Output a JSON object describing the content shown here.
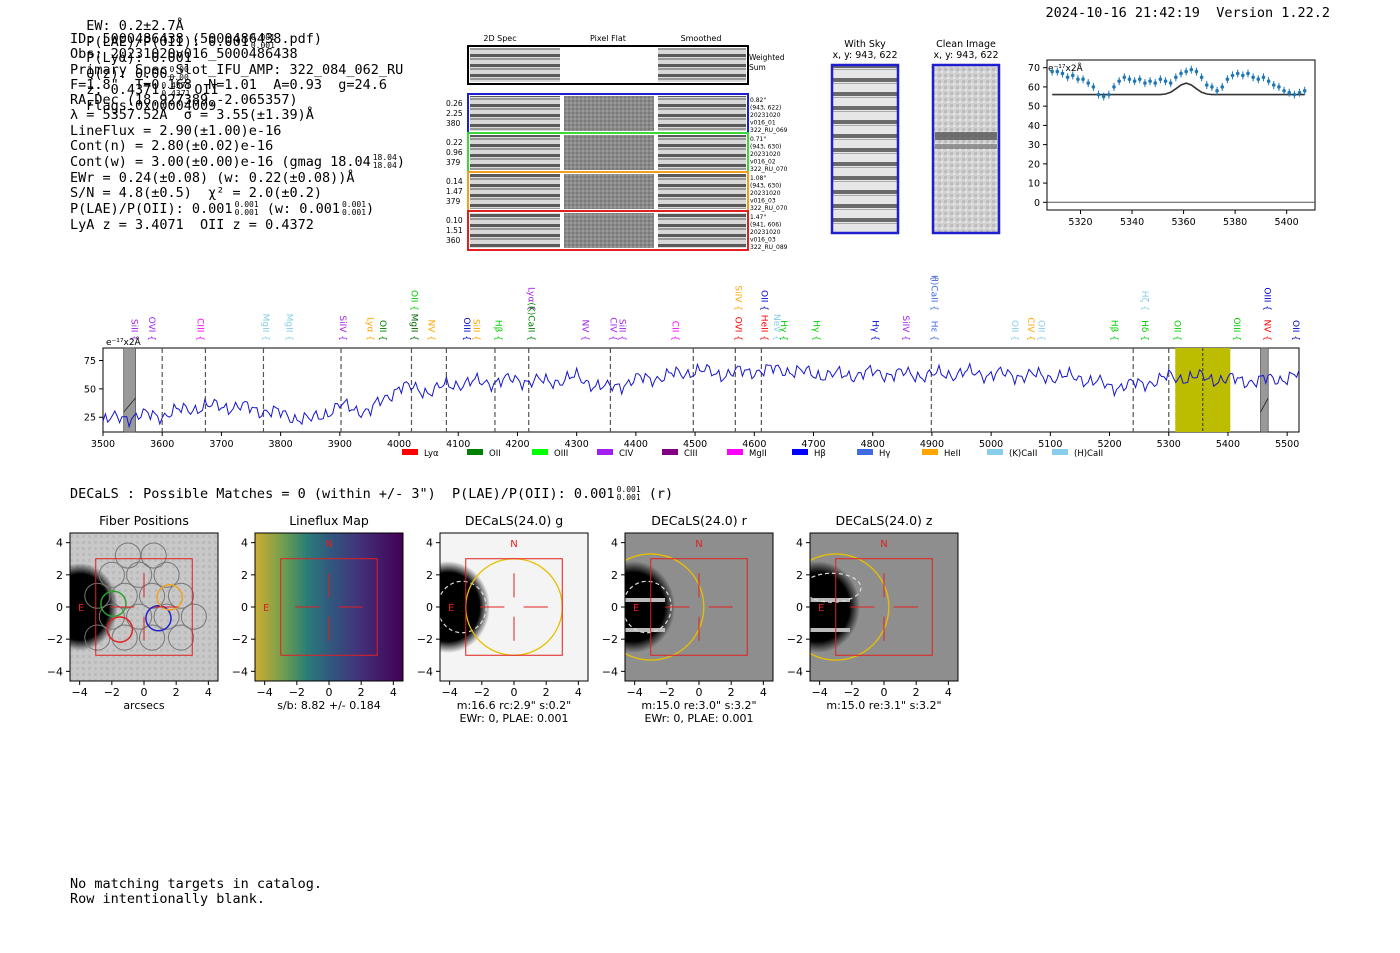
{
  "header": {
    "ew": "EW: 0.2±2.7Å",
    "plae_label": "P(LAE)/P(OII): 0.001",
    "plae_hi": "0.001",
    "plae_lo": "0.001",
    "plya": "P(Lyα): 0.001",
    "qz_label": "Q(z): 0.00",
    "qz_hi": "0.00",
    "qz_lo": "0.00",
    "z_label": "z: 0.4371",
    "z_hi": "0.4371",
    "z_lo": "0.4371",
    "z_line": "OII",
    "flags": "Flags:0x00004009",
    "timestamp": "2024-10-16 21:42:19",
    "version": "Version 1.22.2"
  },
  "info": {
    "id": "ID: 5000486438 (5000486438.pdf)",
    "obs": "Obs: 20231020v016_5000486438",
    "primary": "Primary Spec_Slot_IFU_AMP: 322_084_062_RU",
    "fwhm": "F=1.8\"  T=0.168  N=1.01  A=0.93  g=24.6",
    "radec": "RA,Dec (18.927389,-2.065357)",
    "lambda": "λ = 5357.52Å  σ = 3.55(±1.39)Å",
    "lineflux": "LineFlux = 2.90(±1.00)e-16",
    "contn": "Cont(n) = 2.80(±0.02)e-16",
    "contw": "Cont(w) = 3.00(±0.00)e-16 (gmag 18.04",
    "contw_hi": "18.04",
    "contw_lo": "18.04",
    "ewr": "EWr = 0.24(±0.08) (w: 0.22(±0.08))Å",
    "sn": "S/N = 4.8(±0.5)  χ² = 2.0(±0.2)",
    "plae": "P(LAE)/P(OII): 0.001",
    "plae_hi": "0.001",
    "plae_lo": "0.001",
    "plae_w": "(w: 0.001",
    "plae_w_hi": "0.001",
    "plae_w_lo": "0.001",
    "lya_z": "LyA z = 3.4071  OII z = 0.4372"
  },
  "cutouts": {
    "col_2d": "2D Spec",
    "col_flat": "Pixel Flat",
    "col_smooth": "Smoothed",
    "weighted": "Weighted",
    "sum": "Sum",
    "rows": [
      {
        "color": "#1f1fd0",
        "left": [
          "0.26",
          "2.25",
          "380"
        ],
        "right": [
          "0.82\"",
          "(943, 622)",
          "20231020",
          "v016_01",
          "322_RU_069"
        ]
      },
      {
        "color": "#3ad83a",
        "left": [
          "0.22",
          "0.96",
          "379"
        ],
        "right": [
          "0.71\"",
          "(943, 630)",
          "20231020",
          "v016_02",
          "322_RU_070"
        ]
      },
      {
        "color": "#f0a020",
        "left": [
          "0.14",
          "1.47",
          "379"
        ],
        "right": [
          "1.08\"",
          "(943, 630)",
          "20231020",
          "v016_03",
          "322_RU_070"
        ]
      },
      {
        "color": "#e02020",
        "left": [
          "0.10",
          "1.51",
          "360"
        ],
        "right": [
          "1.47\"",
          "(941, 606)",
          "20231020",
          "v016_03",
          "322_RU_089"
        ]
      }
    ],
    "with_sky": "With Sky",
    "with_sky_xy": "x, y: 943, 622",
    "clean": "Clean Image",
    "clean_xy": "x, y: 943, 622"
  },
  "zoom_chart": {
    "type": "line",
    "unit_label": "e⁻¹⁷x2Å",
    "xlim": [
      5307,
      5411
    ],
    "ylim": [
      -4,
      74
    ],
    "xticks": [
      5320,
      5340,
      5360,
      5380,
      5400
    ],
    "yticks": [
      0,
      10,
      20,
      30,
      40,
      50,
      60,
      70
    ],
    "points_x": [
      5309,
      5311,
      5313,
      5315,
      5317,
      5319,
      5321,
      5323,
      5325,
      5327,
      5329,
      5331,
      5333,
      5335,
      5337,
      5339,
      5341,
      5343,
      5345,
      5347,
      5349,
      5351,
      5353,
      5355,
      5357,
      5359,
      5361,
      5363,
      5365,
      5367,
      5369,
      5371,
      5373,
      5375,
      5377,
      5379,
      5381,
      5383,
      5385,
      5387,
      5389,
      5391,
      5393,
      5395,
      5397,
      5399,
      5401,
      5403,
      5405,
      5407
    ],
    "points_y": [
      68,
      68,
      67,
      65,
      66,
      64,
      64,
      62,
      60,
      56,
      55,
      56,
      60,
      63,
      65,
      64,
      63,
      64,
      62,
      63,
      62,
      64,
      63,
      62,
      65,
      67,
      68,
      69,
      68,
      65,
      61,
      60,
      58,
      60,
      64,
      66,
      67,
      66,
      67,
      65,
      64,
      65,
      63,
      61,
      60,
      58,
      57,
      56,
      57,
      58
    ],
    "model_y": [
      56,
      56,
      56,
      56,
      56,
      56,
      56,
      56,
      56,
      56,
      56,
      56,
      56,
      56,
      56,
      56,
      56,
      56,
      56,
      56,
      56,
      56,
      56.3,
      57.2,
      59,
      61,
      62,
      61,
      59,
      57.2,
      56.3,
      56,
      56,
      56,
      56,
      56,
      56,
      56,
      56,
      56,
      56,
      56,
      56,
      56,
      56,
      56,
      56,
      56,
      56,
      56
    ]
  },
  "spectrum": {
    "unit_label": "e⁻¹⁷x2Å",
    "xlim": [
      3500,
      5520
    ],
    "ylim": [
      12,
      86
    ],
    "xticks": [
      3500,
      3600,
      3700,
      3800,
      3900,
      4000,
      4100,
      4200,
      4300,
      4400,
      4500,
      4600,
      4700,
      4800,
      4900,
      5000,
      5100,
      5200,
      5300,
      5400,
      5500
    ],
    "yticks": [
      25,
      50,
      75
    ],
    "highlight_band": [
      5311,
      5404
    ],
    "highlight_center": 5357.5,
    "masked_bands": [
      [
        3535,
        3555
      ],
      [
        5455,
        5468
      ]
    ],
    "dashed_lines": [
      3600,
      3673,
      3771,
      3902,
      4021,
      4080,
      4162,
      4219,
      4357,
      4497,
      4568,
      4612,
      4899,
      5240,
      5300
    ],
    "line_labels": [
      {
        "name": "SiII",
        "x": 3548,
        "row": 0,
        "color": "#a020f0"
      },
      {
        "name": "OVI",
        "x": 3578,
        "row": 0,
        "color": "#a020f0"
      },
      {
        "name": "CIII",
        "x": 3660,
        "row": 0,
        "color": "#ff00ff"
      },
      {
        "name": "MgII",
        "x": 3770,
        "row": 0,
        "color": "#87ceeb"
      },
      {
        "name": "MgII",
        "x": 3810,
        "row": 0,
        "color": "#87ceeb"
      },
      {
        "name": "SiIV",
        "x": 3900,
        "row": 0,
        "color": "#a020f0"
      },
      {
        "name": "Lyα",
        "x": 3947,
        "row": 0,
        "color": "#ffa500"
      },
      {
        "name": "OII",
        "x": 3968,
        "row": 0,
        "color": "#008000"
      },
      {
        "name": "OII",
        "x": 4021,
        "row": 1,
        "color": "#00cc00"
      },
      {
        "name": "MgII",
        "x": 4021,
        "row": 0,
        "color": "#006400"
      },
      {
        "name": "NV",
        "x": 4050,
        "row": 0,
        "color": "#ffa500"
      },
      {
        "name": "OIII",
        "x": 4110,
        "row": 0,
        "color": "#0000cd"
      },
      {
        "name": "SiII",
        "x": 4126,
        "row": 0,
        "color": "#ffa500"
      },
      {
        "name": "Hβ",
        "x": 4163,
        "row": 0,
        "color": "#00cc00"
      },
      {
        "name": "Lyα",
        "x": 4219,
        "row": 1,
        "color": "#a020f0"
      },
      {
        "name": "(K)CaII",
        "x": 4219,
        "row": 0,
        "color": "#008000"
      },
      {
        "name": "NV",
        "x": 4310,
        "row": 0,
        "color": "#a020f0"
      },
      {
        "name": "CIV",
        "x": 4357,
        "row": 0,
        "color": "#a020f0"
      },
      {
        "name": "SiII",
        "x": 4372,
        "row": 0,
        "color": "#a020f0"
      },
      {
        "name": "CII",
        "x": 4462,
        "row": 0,
        "color": "#ff00ff"
      },
      {
        "name": "SiIV",
        "x": 4568,
        "row": 1,
        "color": "#ffa500"
      },
      {
        "name": "OVI",
        "x": 4568,
        "row": 0,
        "color": "#ff0000"
      },
      {
        "name": "OII",
        "x": 4612,
        "row": 1,
        "color": "#0000cd"
      },
      {
        "name": "HeII",
        "x": 4612,
        "row": 0,
        "color": "#ff0000"
      },
      {
        "name": "NeV",
        "x": 4633,
        "row": 0,
        "color": "#87ceeb"
      },
      {
        "name": "Hγ",
        "x": 4645,
        "row": 0,
        "color": "#00cc00"
      },
      {
        "name": "Hγ",
        "x": 4700,
        "row": 0,
        "color": "#00cc00"
      },
      {
        "name": "Hγ",
        "x": 4800,
        "row": 0,
        "color": "#0000cd"
      },
      {
        "name": "SiIV",
        "x": 4851,
        "row": 0,
        "color": "#a020f0"
      },
      {
        "name": "(H)CaII",
        "x": 4899,
        "row": 1,
        "color": "#4169e1"
      },
      {
        "name": "MgII",
        "x": 4899,
        "row": 2,
        "color": "#4169e1"
      },
      {
        "name": "Hε",
        "x": 4899,
        "row": 0,
        "color": "#4169e1"
      },
      {
        "name": "OII",
        "x": 5035,
        "row": 0,
        "color": "#87ceeb"
      },
      {
        "name": "CIV",
        "x": 5062,
        "row": 0,
        "color": "#ffa500"
      },
      {
        "name": "OII",
        "x": 5080,
        "row": 0,
        "color": "#87ceeb"
      },
      {
        "name": "Hβ",
        "x": 5203,
        "row": 0,
        "color": "#00cc00"
      },
      {
        "name": "Hδ",
        "x": 5255,
        "row": 0,
        "color": "#00cc00"
      },
      {
        "name": "Hζ",
        "x": 5255,
        "row": 1,
        "color": "#87ceeb"
      },
      {
        "name": "OII",
        "x": 5310,
        "row": 0,
        "color": "#00cc00"
      },
      {
        "name": "OIII",
        "x": 5410,
        "row": 0,
        "color": "#00cc00"
      },
      {
        "name": "NV",
        "x": 5462,
        "row": 0,
        "color": "#ff0000"
      },
      {
        "name": "OIII",
        "x": 5462,
        "row": 1,
        "color": "#0000cd"
      },
      {
        "name": "OII",
        "x": 5510,
        "row": 0,
        "color": "#0000cd"
      }
    ],
    "legend": [
      {
        "name": "Lyα",
        "color": "#ff0000"
      },
      {
        "name": "OII",
        "color": "#008000"
      },
      {
        "name": "OIII",
        "color": "#00ff00"
      },
      {
        "name": "CIV",
        "color": "#a020f0"
      },
      {
        "name": "CIII",
        "color": "#800080"
      },
      {
        "name": "MgII",
        "color": "#ff00ff"
      },
      {
        "name": "Hβ",
        "color": "#0000ff"
      },
      {
        "name": "Hγ",
        "color": "#4169e1"
      },
      {
        "name": "HeII",
        "color": "#ffa500"
      },
      {
        "name": "(K)CaII",
        "color": "#87ceeb"
      },
      {
        "name": "(H)CaII",
        "color": "#87ceeb"
      }
    ]
  },
  "decals": {
    "line": "DECaLS : Possible Matches = 0 (within +/- 3\")  P(LAE)/P(OII): 0.001",
    "line_hi": "0.001",
    "line_lo": "0.001",
    "line_tail": "(r)",
    "xticks": [
      -4,
      -2,
      0,
      2,
      4
    ],
    "yticks": [
      4,
      2,
      0,
      -2,
      -4
    ],
    "panels": [
      {
        "title": "Fiber Positions",
        "caption1": "arcsecs",
        "caption2": "",
        "north": "",
        "east": "E"
      },
      {
        "title": "Lineflux Map",
        "caption1": "s/b: 8.82 +/- 0.184",
        "caption2": "",
        "north": "N",
        "east": "E"
      },
      {
        "title": "DECaLS(24.0) g",
        "caption1": "m:16.6 rc:2.9\"  s:0.2\"",
        "caption2": "EWr: 0, PLAE: 0.001",
        "north": "N",
        "east": "E"
      },
      {
        "title": "DECaLS(24.0) r",
        "caption1": "m:15.0  re:3.0\"  s:3.2\"",
        "caption2": "EWr: 0, PLAE: 0.001",
        "north": "N",
        "east": "E"
      },
      {
        "title": "DECaLS(24.0) z",
        "caption1": "m:15.0  re:3.1\"  s:3.2\"",
        "caption2": "",
        "north": "N",
        "east": "E"
      }
    ]
  },
  "footer": {
    "line1": "No matching targets in catalog.",
    "line2": "Row intentionally blank."
  },
  "chart_data": [
    {
      "type": "line",
      "title": "",
      "xlabel": "",
      "ylabel": "e⁻¹⁷x2Å",
      "xlim": [
        5307,
        5411
      ],
      "ylim": [
        -4,
        74
      ],
      "series": [
        {
          "name": "data",
          "x": [
            5309,
            5311,
            5313,
            5315,
            5317,
            5319,
            5321,
            5323,
            5325,
            5327,
            5329,
            5331,
            5333,
            5335,
            5337,
            5339,
            5341,
            5343,
            5345,
            5347,
            5349,
            5351,
            5353,
            5355,
            5357,
            5359,
            5361,
            5363,
            5365,
            5367,
            5369,
            5371,
            5373,
            5375,
            5377,
            5379,
            5381,
            5383,
            5385,
            5387,
            5389,
            5391,
            5393,
            5395,
            5397,
            5399,
            5401,
            5403,
            5405,
            5407
          ],
          "values": [
            68,
            68,
            67,
            65,
            66,
            64,
            64,
            62,
            60,
            56,
            55,
            56,
            60,
            63,
            65,
            64,
            63,
            64,
            62,
            63,
            62,
            64,
            63,
            62,
            65,
            67,
            68,
            69,
            68,
            65,
            61,
            60,
            58,
            60,
            64,
            66,
            67,
            66,
            67,
            65,
            64,
            65,
            63,
            61,
            60,
            58,
            57,
            56,
            57,
            58
          ]
        },
        {
          "name": "gaussian fit",
          "center": 5357.5,
          "sigma": 3.55,
          "continuum": 56,
          "amplitude": 6
        }
      ]
    },
    {
      "type": "line",
      "title": "",
      "xlabel": "",
      "ylabel": "e⁻¹⁷x2Å",
      "xlim": [
        3500,
        5520
      ],
      "ylim": [
        12,
        86
      ],
      "series": [
        {
          "name": "spectrum",
          "x": [
            3500,
            3550,
            3600,
            3650,
            3700,
            3750,
            3800,
            3850,
            3900,
            3950,
            4000,
            4050,
            4100,
            4150,
            4200,
            4250,
            4300,
            4350,
            4400,
            4450,
            4500,
            4550,
            4600,
            4650,
            4700,
            4750,
            4800,
            4850,
            4900,
            4950,
            5000,
            5050,
            5100,
            5150,
            5200,
            5250,
            5300,
            5350,
            5400,
            5450,
            5500,
            5520
          ],
          "values": [
            22,
            26,
            27,
            33,
            35,
            33,
            28,
            22,
            35,
            30,
            52,
            48,
            55,
            56,
            58,
            56,
            60,
            50,
            58,
            61,
            66,
            63,
            66,
            67,
            63,
            62,
            64,
            63,
            62,
            64,
            63,
            62,
            61,
            60,
            52,
            54,
            60,
            60,
            58,
            57,
            60,
            62
          ]
        }
      ]
    }
  ]
}
